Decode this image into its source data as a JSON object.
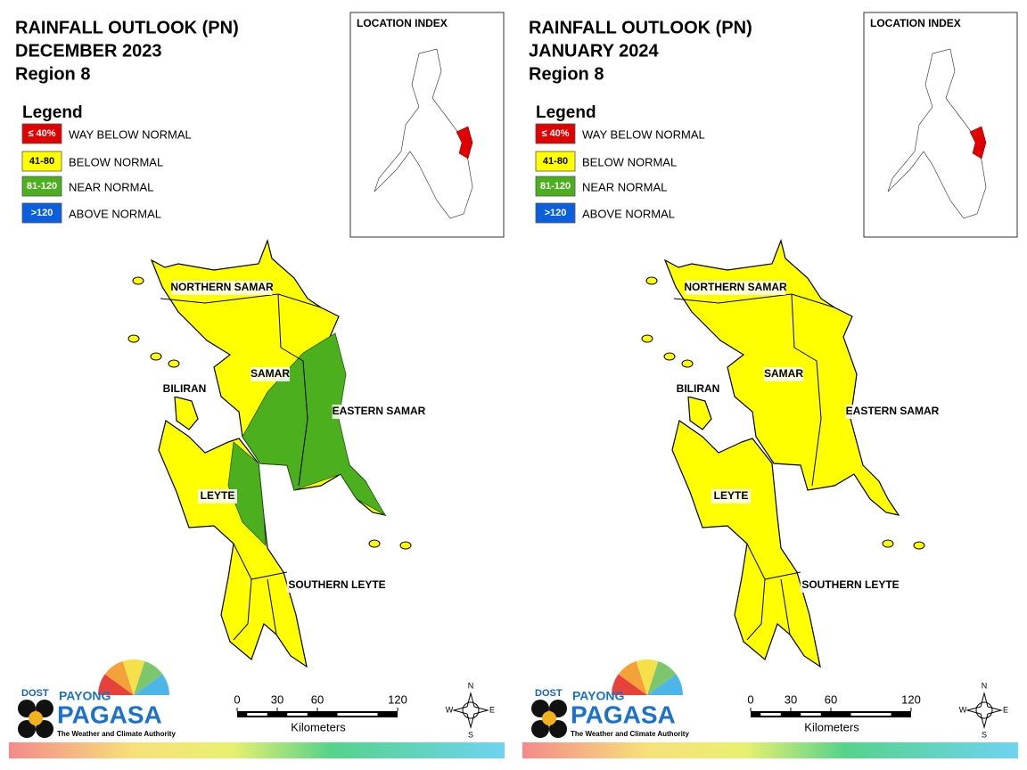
{
  "panels": [
    {
      "title": "RAINFALL OUTLOOK (PN)",
      "period": "DECEMBER 2023",
      "region": "Region 8",
      "legend": {
        "title": "Legend",
        "items": [
          {
            "range": "≤ 40%",
            "label": "WAY BELOW NORMAL",
            "color": "#e00000"
          },
          {
            "range": "41-80",
            "label": "BELOW NORMAL",
            "color": "#ffff00"
          },
          {
            "range": "81-120",
            "label": "NEAR NORMAL",
            "color": "#4caf1e"
          },
          {
            "range": ">120",
            "label": "ABOVE NORMAL",
            "color": "#0a5fdc"
          }
        ]
      },
      "location_index": "LOCATION INDEX",
      "provinces": [
        "NORTHERN SAMAR",
        "SAMAR",
        "BILIRAN",
        "EASTERN SAMAR",
        "LEYTE",
        "SOUTHERN LEYTE"
      ],
      "scale": {
        "ticks": [
          0,
          30,
          60,
          120
        ],
        "unit": "Kilometers"
      },
      "compass": [
        "N",
        "E",
        "S",
        "W"
      ],
      "logo": {
        "agency": "DOST",
        "brand_top": "PAYONG",
        "brand": "PAGASA",
        "tagline": "The Weather and Climate Authority"
      }
    },
    {
      "title": "RAINFALL OUTLOOK (PN)",
      "period": "JANUARY 2024",
      "region": "Region 8",
      "legend": {
        "title": "Legend",
        "items": [
          {
            "range": "≤ 40%",
            "label": "WAY BELOW NORMAL",
            "color": "#e00000"
          },
          {
            "range": "41-80",
            "label": "BELOW NORMAL",
            "color": "#ffff00"
          },
          {
            "range": "81-120",
            "label": "NEAR NORMAL",
            "color": "#4caf1e"
          },
          {
            "range": ">120",
            "label": "ABOVE NORMAL",
            "color": "#0a5fdc"
          }
        ]
      },
      "location_index": "LOCATION INDEX",
      "provinces": [
        "NORTHERN SAMAR",
        "SAMAR",
        "BILIRAN",
        "EASTERN SAMAR",
        "LEYTE",
        "SOUTHERN LEYTE"
      ],
      "scale": {
        "ticks": [
          0,
          30,
          60,
          120
        ],
        "unit": "Kilometers"
      },
      "compass": [
        "N",
        "E",
        "S",
        "W"
      ],
      "logo": {
        "agency": "DOST",
        "brand_top": "PAYONG",
        "brand": "PAGASA",
        "tagline": "The Weather and Climate Authority"
      }
    }
  ]
}
